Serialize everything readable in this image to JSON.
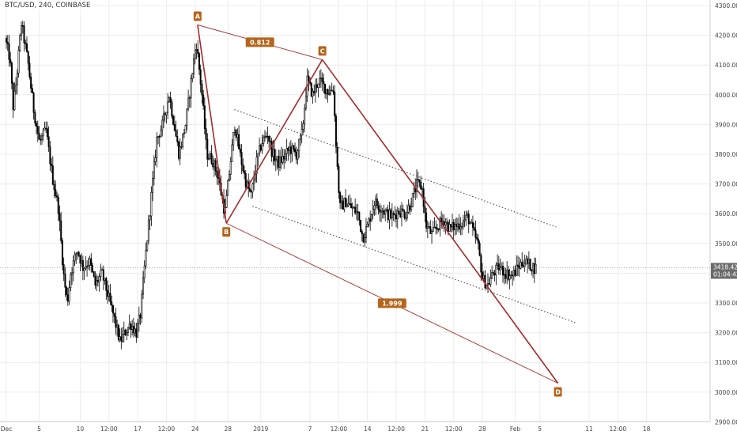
{
  "header": {
    "symbol_label": "BTC/USD, 240, COINBASE"
  },
  "colors": {
    "background": "#ffffff",
    "grid": "#ececec",
    "candle": "#000000",
    "pattern_line": "#a52a2a",
    "label_bg": "#b5651d",
    "label_fill_d": "#c0392b",
    "channel_line": "#555555",
    "price_badge": "#6b6b6b"
  },
  "current_price": {
    "value": "3418.42",
    "countdown": "01:04:42"
  },
  "chart_data": {
    "type": "candlestick",
    "title": "BTC/USD, 240, COINBASE",
    "ylim": [
      2900,
      4300
    ],
    "y_ticks": [
      2900,
      3000,
      3100,
      3200,
      3300,
      3400,
      3500,
      3600,
      3700,
      3800,
      3900,
      4000,
      4100,
      4200,
      4300
    ],
    "y_tick_labels": [
      "2900.00",
      "3000.00",
      "3100.00",
      "3200.00",
      "3300.00",
      "3400.00",
      "3500.00",
      "3600.00",
      "3700.00",
      "3800.00",
      "3900.00",
      "4000.00",
      "4100.00",
      "4200.00",
      "4300.00"
    ],
    "x_ticks": [
      {
        "day": 0,
        "label": "Dec"
      },
      {
        "day": 4,
        "label": "5"
      },
      {
        "day": 9,
        "label": "10"
      },
      {
        "day": 12.5,
        "label": "12:00"
      },
      {
        "day": 16,
        "label": "17"
      },
      {
        "day": 19.5,
        "label": "12:00"
      },
      {
        "day": 23,
        "label": "24"
      },
      {
        "day": 27,
        "label": "28"
      },
      {
        "day": 31,
        "label": "2019"
      },
      {
        "day": 37,
        "label": "7"
      },
      {
        "day": 40.5,
        "label": "12:00"
      },
      {
        "day": 44,
        "label": "14"
      },
      {
        "day": 47.5,
        "label": "12:00"
      },
      {
        "day": 51,
        "label": "21"
      },
      {
        "day": 54.5,
        "label": "12:00"
      },
      {
        "day": 58,
        "label": "28"
      },
      {
        "day": 62,
        "label": "Feb"
      },
      {
        "day": 65,
        "label": "5"
      },
      {
        "day": 71,
        "label": "11"
      },
      {
        "day": 74.5,
        "label": "12:00"
      },
      {
        "day": 78,
        "label": "18"
      }
    ],
    "harmonic_pattern": {
      "points": [
        {
          "label": "A",
          "day": 23.3,
          "price": 4235
        },
        {
          "label": "B",
          "day": 26.8,
          "price": 3568
        },
        {
          "label": "C",
          "day": 38.5,
          "price": 4118
        },
        {
          "label": "D",
          "day": 67.2,
          "price": 3030
        }
      ],
      "ratios": [
        {
          "label": "0.812",
          "between": "A-C"
        },
        {
          "label": "1.999",
          "between": "B-D"
        }
      ]
    },
    "channel": {
      "upper": {
        "start": {
          "day": 27.8,
          "price": 3950
        },
        "end": {
          "day": 67.0,
          "price": 3555
        }
      },
      "lower": {
        "start": {
          "day": 30.0,
          "price": 3625
        },
        "end": {
          "day": 69.5,
          "price": 3232
        }
      }
    },
    "series_anchors": [
      {
        "day": 0.0,
        "price": 4190
      },
      {
        "day": 0.6,
        "price": 4120
      },
      {
        "day": 1.0,
        "price": 3960
      },
      {
        "day": 1.4,
        "price": 4050
      },
      {
        "day": 2.0,
        "price": 4240
      },
      {
        "day": 2.8,
        "price": 4110
      },
      {
        "day": 3.5,
        "price": 3950
      },
      {
        "day": 4.2,
        "price": 3840
      },
      {
        "day": 5.0,
        "price": 3880
      },
      {
        "day": 5.8,
        "price": 3720
      },
      {
        "day": 6.5,
        "price": 3620
      },
      {
        "day": 7.2,
        "price": 3380
      },
      {
        "day": 7.6,
        "price": 3300
      },
      {
        "day": 8.0,
        "price": 3400
      },
      {
        "day": 8.8,
        "price": 3480
      },
      {
        "day": 9.5,
        "price": 3420
      },
      {
        "day": 10.3,
        "price": 3440
      },
      {
        "day": 11.0,
        "price": 3360
      },
      {
        "day": 11.8,
        "price": 3400
      },
      {
        "day": 12.5,
        "price": 3330
      },
      {
        "day": 13.2,
        "price": 3260
      },
      {
        "day": 14.0,
        "price": 3170
      },
      {
        "day": 14.6,
        "price": 3200
      },
      {
        "day": 15.3,
        "price": 3230
      },
      {
        "day": 16.0,
        "price": 3200
      },
      {
        "day": 16.5,
        "price": 3260
      },
      {
        "day": 17.2,
        "price": 3480
      },
      {
        "day": 17.8,
        "price": 3650
      },
      {
        "day": 18.5,
        "price": 3850
      },
      {
        "day": 19.2,
        "price": 3900
      },
      {
        "day": 20.0,
        "price": 4000
      },
      {
        "day": 20.6,
        "price": 3900
      },
      {
        "day": 21.2,
        "price": 3800
      },
      {
        "day": 22.0,
        "price": 3900
      },
      {
        "day": 22.7,
        "price": 4050
      },
      {
        "day": 23.3,
        "price": 4180
      },
      {
        "day": 24.0,
        "price": 4000
      },
      {
        "day": 24.6,
        "price": 3800
      },
      {
        "day": 25.3,
        "price": 3780
      },
      {
        "day": 26.0,
        "price": 3720
      },
      {
        "day": 26.8,
        "price": 3600
      },
      {
        "day": 27.5,
        "price": 3780
      },
      {
        "day": 28.0,
        "price": 3900
      },
      {
        "day": 28.7,
        "price": 3790
      },
      {
        "day": 29.4,
        "price": 3700
      },
      {
        "day": 30.0,
        "price": 3660
      },
      {
        "day": 30.7,
        "price": 3780
      },
      {
        "day": 31.3,
        "price": 3840
      },
      {
        "day": 32.0,
        "price": 3870
      },
      {
        "day": 32.6,
        "price": 3800
      },
      {
        "day": 33.3,
        "price": 3770
      },
      {
        "day": 34.0,
        "price": 3790
      },
      {
        "day": 34.7,
        "price": 3820
      },
      {
        "day": 35.5,
        "price": 3800
      },
      {
        "day": 36.2,
        "price": 3870
      },
      {
        "day": 36.8,
        "price": 4050
      },
      {
        "day": 37.5,
        "price": 4000
      },
      {
        "day": 38.2,
        "price": 4050
      },
      {
        "day": 38.8,
        "price": 4030
      },
      {
        "day": 39.4,
        "price": 4010
      },
      {
        "day": 40.0,
        "price": 4020
      },
      {
        "day": 40.4,
        "price": 3800
      },
      {
        "day": 40.8,
        "price": 3620
      },
      {
        "day": 41.5,
        "price": 3640
      },
      {
        "day": 42.2,
        "price": 3620
      },
      {
        "day": 43.0,
        "price": 3600
      },
      {
        "day": 43.6,
        "price": 3520
      },
      {
        "day": 44.2,
        "price": 3560
      },
      {
        "day": 45.0,
        "price": 3640
      },
      {
        "day": 45.8,
        "price": 3620
      },
      {
        "day": 46.5,
        "price": 3600
      },
      {
        "day": 47.2,
        "price": 3590
      },
      {
        "day": 48.0,
        "price": 3610
      },
      {
        "day": 48.8,
        "price": 3600
      },
      {
        "day": 49.5,
        "price": 3640
      },
      {
        "day": 50.2,
        "price": 3700
      },
      {
        "day": 50.8,
        "price": 3690
      },
      {
        "day": 51.3,
        "price": 3560
      },
      {
        "day": 52.0,
        "price": 3530
      },
      {
        "day": 52.8,
        "price": 3560
      },
      {
        "day": 53.5,
        "price": 3580
      },
      {
        "day": 54.2,
        "price": 3550
      },
      {
        "day": 55.0,
        "price": 3560
      },
      {
        "day": 55.7,
        "price": 3570
      },
      {
        "day": 56.4,
        "price": 3590
      },
      {
        "day": 57.0,
        "price": 3540
      },
      {
        "day": 57.6,
        "price": 3500
      },
      {
        "day": 58.2,
        "price": 3380
      },
      {
        "day": 58.8,
        "price": 3360
      },
      {
        "day": 59.5,
        "price": 3400
      },
      {
        "day": 60.2,
        "price": 3420
      },
      {
        "day": 61.0,
        "price": 3400
      },
      {
        "day": 61.8,
        "price": 3390
      },
      {
        "day": 62.5,
        "price": 3420
      },
      {
        "day": 63.2,
        "price": 3440
      },
      {
        "day": 63.8,
        "price": 3430
      },
      {
        "day": 64.5,
        "price": 3418
      }
    ]
  }
}
